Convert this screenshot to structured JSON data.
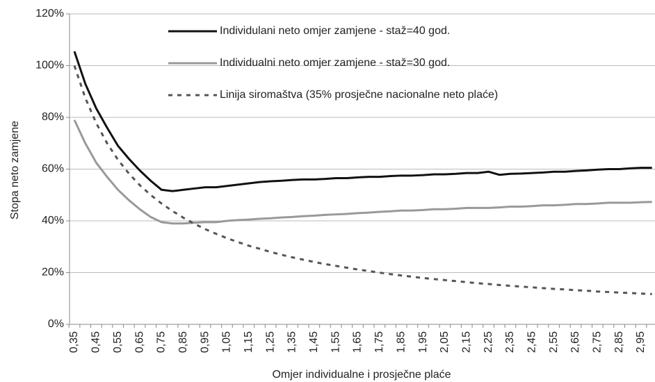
{
  "chart_data": {
    "type": "line",
    "xlabel": "Omjer individualne i prosječne plaće",
    "ylabel": "Stopa neto zamjene",
    "categories": [
      "0,35",
      null,
      "0,45",
      null,
      "0,55",
      null,
      "0,65",
      null,
      "0,75",
      null,
      "0,85",
      null,
      "0,95",
      null,
      "1,05",
      null,
      "1,15",
      null,
      "1,25",
      null,
      "1,35",
      null,
      "1,45",
      null,
      "1,55",
      null,
      "1,65",
      null,
      "1,75",
      null,
      "1,85",
      null,
      "1,95",
      null,
      "2,05",
      null,
      "2,15",
      null,
      "2,25",
      null,
      "2,35",
      null,
      "2,45",
      null,
      "2,55",
      null,
      "2,65",
      null,
      "2,75",
      null,
      "2,85",
      null,
      "2,95",
      null
    ],
    "ylim": [
      0,
      120
    ],
    "yticks": [
      {
        "value": 0,
        "label": "0%"
      },
      {
        "value": 20,
        "label": "20%"
      },
      {
        "value": 40,
        "label": "40%"
      },
      {
        "value": 60,
        "label": "60%"
      },
      {
        "value": 80,
        "label": "80%"
      },
      {
        "value": 100,
        "label": "100%"
      },
      {
        "value": 120,
        "label": "120%"
      }
    ],
    "grid": true,
    "legend": "top",
    "series": [
      {
        "name": "Individulani neto omjer zamjene - staž=40 god.",
        "color": "#111111",
        "style": "solid",
        "values": [
          105.5,
          93,
          83.5,
          76,
          69,
          64,
          59.5,
          55.5,
          52,
          51.5,
          52,
          52.5,
          53,
          53,
          53.5,
          54,
          54.5,
          55,
          55.3,
          55.5,
          55.8,
          56,
          56,
          56.2,
          56.5,
          56.5,
          56.8,
          57,
          57,
          57.3,
          57.5,
          57.5,
          57.7,
          58,
          58,
          58.2,
          58.5,
          58.5,
          59,
          57.8,
          58.2,
          58.3,
          58.5,
          58.7,
          59,
          59,
          59.3,
          59.5,
          59.8,
          60,
          60,
          60.3,
          60.5,
          60.5
        ]
      },
      {
        "name": "Individualni neto omjer zamjene - staž=30 god.",
        "color": "#999999",
        "style": "solid",
        "values": [
          79,
          70,
          62.5,
          57,
          52,
          48,
          44.5,
          41.5,
          39.5,
          39,
          39,
          39.3,
          39.5,
          39.5,
          40,
          40.3,
          40.5,
          40.8,
          41,
          41.3,
          41.5,
          41.8,
          42,
          42.3,
          42.5,
          42.7,
          43,
          43.2,
          43.5,
          43.7,
          44,
          44,
          44.2,
          44.5,
          44.5,
          44.7,
          45,
          45,
          45,
          45.2,
          45.5,
          45.5,
          45.7,
          46,
          46,
          46.2,
          46.5,
          46.5,
          46.7,
          47,
          47,
          47,
          47.2,
          47.3
        ]
      },
      {
        "name": "Linija siromaštva (35% prosječne nacionalne neto plaće)",
        "color": "#555555",
        "style": "dashed",
        "values": [
          100,
          87.5,
          77.8,
          70,
          63.6,
          58.3,
          53.8,
          50,
          46.7,
          43.8,
          41.2,
          38.9,
          36.8,
          35,
          33.3,
          31.8,
          30.4,
          29.2,
          28,
          26.9,
          25.9,
          25,
          24.1,
          23.3,
          22.6,
          21.9,
          21.2,
          20.6,
          20,
          19.4,
          18.9,
          18.4,
          17.9,
          17.5,
          17.1,
          16.7,
          16.3,
          15.9,
          15.6,
          15.2,
          14.9,
          14.6,
          14.3,
          14,
          13.7,
          13.5,
          13.2,
          13,
          12.7,
          12.5,
          12.3,
          12.1,
          11.9,
          11.7
        ]
      }
    ]
  }
}
